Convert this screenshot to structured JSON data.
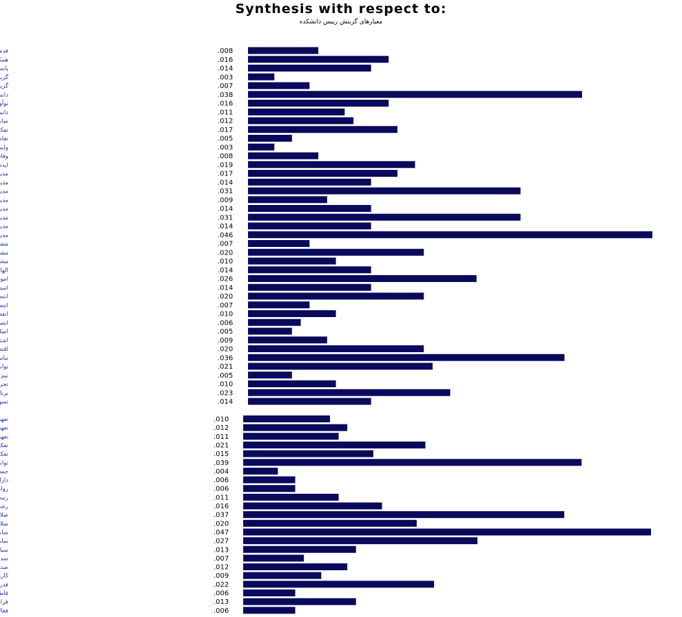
{
  "header": {
    "title": "Synthesis with respect to:",
    "subtitle": "معیارهای گزینش رییس دانشکده"
  },
  "chart_data": [
    {
      "type": "bar",
      "orientation": "horizontal",
      "categories": [
        "قدمت خدمتی",
        "همکاری با دانشجویان",
        "پاسخگویی",
        "گزینش سابقه در وزارت",
        "گزینش سیاسی",
        "دانش علمی",
        "نوآوری",
        "دانش",
        "سابقه بودن",
        "تفکر",
        "تعادل بودن",
        "وابستگی حزبی",
        "وفاداری",
        "ایده دار",
        "مدیریت مالی",
        "مدیریت مشارکتی",
        "مدیریت ارتباطات",
        "مدیریت بهداشت",
        "مدیریت بحران",
        "مدیریت تغییر",
        "مدیریت سیاسی",
        "مدیریت علمی",
        "مشارکت با نهادها",
        "مشارکت در امور دانشگاهی",
        "مشارکت در اجتماع",
        "الهام بخش",
        "امور دانشجویی",
        "استقلال",
        "انتصاب تعاملی و مشارکتی",
        "انتصاب",
        "انعطاف پذیر",
        "انضباط مدار",
        "اصلاح گرایی",
        "اشتیاق",
        "اقتدار",
        "تناسب رشته با مدیریت",
        "توانمندی علمی",
        "تیم مدار",
        "تجربه پژوهشی",
        "برنامه ریز",
        "تسهیل گر"
      ],
      "values": [
        0.008,
        0.016,
        0.014,
        0.003,
        0.007,
        0.038,
        0.016,
        0.011,
        0.012,
        0.017,
        0.005,
        0.003,
        0.008,
        0.019,
        0.017,
        0.014,
        0.031,
        0.009,
        0.014,
        0.031,
        0.014,
        0.046,
        0.007,
        0.02,
        0.01,
        0.014,
        0.026,
        0.014,
        0.02,
        0.007,
        0.01,
        0.006,
        0.005,
        0.009,
        0.02,
        0.036,
        0.021,
        0.005,
        0.01,
        0.023,
        0.014
      ],
      "value_labels": [
        ".008",
        ".016",
        ".014",
        ".003",
        ".007",
        ".038",
        ".016",
        ".011",
        ".012",
        ".017",
        ".005",
        ".003",
        ".008",
        ".019",
        ".017",
        ".014",
        ".031",
        ".009",
        ".014",
        ".031",
        ".014",
        ".046",
        ".007",
        ".020",
        ".010",
        ".014",
        ".026",
        ".014",
        ".020",
        ".007",
        ".010",
        ".006",
        ".005",
        ".009",
        ".020",
        ".036",
        ".021",
        ".005",
        ".010",
        ".023",
        ".014"
      ],
      "bar_color": "#0a0a5c",
      "label_color": "#1f2fb8"
    },
    {
      "type": "bar",
      "orientation": "horizontal",
      "categories": [
        "تعهد به حقیقت",
        "تعهد سازمانی",
        "تعهد فردی",
        "تفکر استراتژیک",
        "تفکر جمعی",
        "توانمندی علمی",
        "جمعیت",
        "دارای اعتبار",
        "روابط دانشگاهی مطلوب",
        "رتبه علمی",
        "رشدیافته",
        "صلاحیت حرفه ای",
        "صلاحیت علمی",
        "سابقه مدیریت دانشگاهی",
        "سابقه مدیریت در سایر سازمان ها",
        "سیاستمدار",
        "صداقت",
        "صداقت علمی",
        "کاریزماتیک",
        "قدرت تصمیم گیری",
        "قاطعیت",
        "فراهم آوری زیرساخت",
        "فعالیت ملی"
      ],
      "values": [
        0.01,
        0.012,
        0.011,
        0.021,
        0.015,
        0.039,
        0.004,
        0.006,
        0.006,
        0.011,
        0.016,
        0.037,
        0.02,
        0.047,
        0.027,
        0.013,
        0.007,
        0.012,
        0.009,
        0.022,
        0.006,
        0.013,
        0.006
      ],
      "value_labels": [
        ".010",
        ".012",
        ".011",
        ".021",
        ".015",
        ".039",
        ".004",
        ".006",
        ".006",
        ".011",
        ".016",
        ".037",
        ".020",
        ".047",
        ".027",
        ".013",
        ".007",
        ".012",
        ".009",
        ".022",
        ".006",
        ".013",
        ".006"
      ],
      "bar_color": "#0a0a5c",
      "label_color": "#1f2fb8"
    }
  ]
}
